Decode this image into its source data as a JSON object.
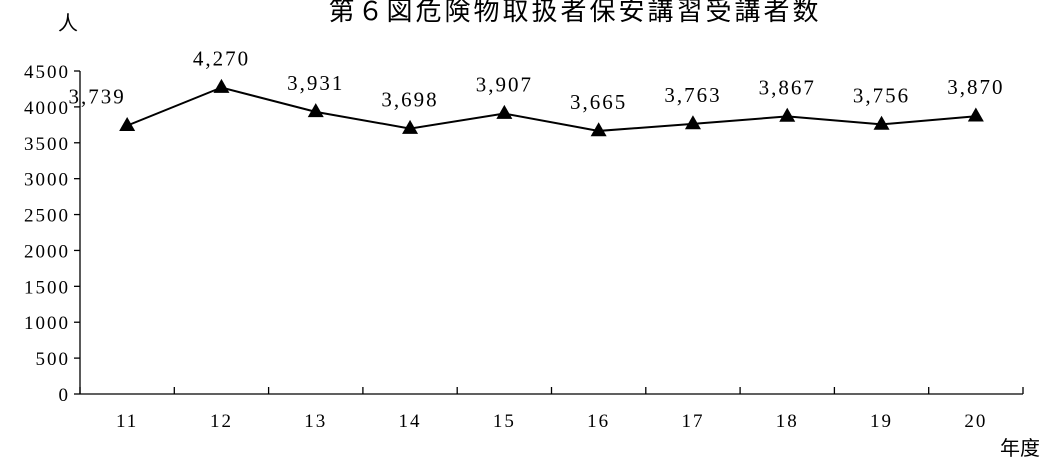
{
  "chart_data": {
    "type": "line",
    "title": "第６図危険物取扱者保安講習受講者数",
    "ylabel": "人",
    "xlabel": "年度",
    "categories": [
      "11",
      "12",
      "13",
      "14",
      "15",
      "16",
      "17",
      "18",
      "19",
      "20"
    ],
    "series": [
      {
        "values": [
          3739,
          4270,
          3931,
          3698,
          3907,
          3665,
          3763,
          3867,
          3756,
          3870
        ],
        "labels": [
          "3,739",
          "4,270",
          "3,931",
          "3,698",
          "3,907",
          "3,665",
          "3,763",
          "3,867",
          "3,756",
          "3,870"
        ],
        "marker": "triangle",
        "color": "#000000"
      }
    ],
    "yticks": [
      "0",
      "500",
      "1000",
      "1500",
      "2000",
      "2500",
      "3000",
      "3500",
      "4000",
      "4500"
    ],
    "ylim": [
      0,
      4500
    ],
    "grid": false,
    "legend": "none"
  }
}
